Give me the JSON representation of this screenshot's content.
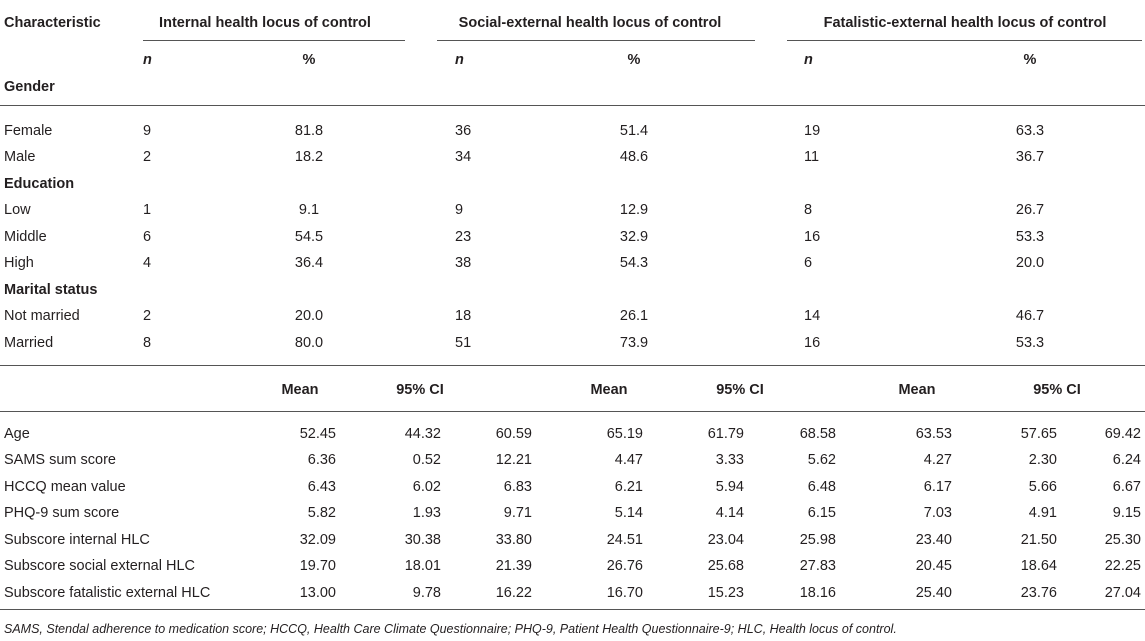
{
  "header": {
    "characteristic": "Characteristic",
    "groups": [
      "Internal health locus of control",
      "Social-external health locus of control",
      "Fatalistic-external health locus of control"
    ],
    "n_label": "n",
    "pct_label": "%",
    "mean_label": "Mean",
    "ci_label": "95% CI"
  },
  "categorical": [
    {
      "type": "section",
      "label": "Gender"
    },
    {
      "type": "row",
      "label": "Female",
      "values": [
        "9",
        "81.8",
        "36",
        "51.4",
        "19",
        "63.3"
      ]
    },
    {
      "type": "row",
      "label": "Male",
      "values": [
        "2",
        "18.2",
        "34",
        "48.6",
        "11",
        "36.7"
      ]
    },
    {
      "type": "section",
      "label": "Education"
    },
    {
      "type": "row",
      "label": "Low",
      "values": [
        "1",
        "9.1",
        "9",
        "12.9",
        "8",
        "26.7"
      ]
    },
    {
      "type": "row",
      "label": "Middle",
      "values": [
        "6",
        "54.5",
        "23",
        "32.9",
        "16",
        "53.3"
      ]
    },
    {
      "type": "row",
      "label": "High",
      "values": [
        "4",
        "36.4",
        "38",
        "54.3",
        "6",
        "20.0"
      ]
    },
    {
      "type": "section",
      "label": "Marital status"
    },
    {
      "type": "row",
      "label": "Not married",
      "values": [
        "2",
        "20.0",
        "18",
        "26.1",
        "14",
        "46.7"
      ]
    },
    {
      "type": "row",
      "label": "Married",
      "values": [
        "8",
        "80.0",
        "51",
        "73.9",
        "16",
        "53.3"
      ]
    }
  ],
  "continuous": [
    {
      "label": "Age",
      "values": [
        "52.45",
        "44.32",
        "60.59",
        "65.19",
        "61.79",
        "68.58",
        "63.53",
        "57.65",
        "69.42"
      ]
    },
    {
      "label": "SAMS sum score",
      "values": [
        "6.36",
        "0.52",
        "12.21",
        "4.47",
        "3.33",
        "5.62",
        "4.27",
        "2.30",
        "6.24"
      ]
    },
    {
      "label": "HCCQ mean value",
      "values": [
        "6.43",
        "6.02",
        "6.83",
        "6.21",
        "5.94",
        "6.48",
        "6.17",
        "5.66",
        "6.67"
      ]
    },
    {
      "label": "PHQ-9 sum score",
      "values": [
        "5.82",
        "1.93",
        "9.71",
        "5.14",
        "4.14",
        "6.15",
        "7.03",
        "4.91",
        "9.15"
      ]
    },
    {
      "label": "Subscore internal HLC",
      "values": [
        "32.09",
        "30.38",
        "33.80",
        "24.51",
        "23.04",
        "25.98",
        "23.40",
        "21.50",
        "25.30"
      ]
    },
    {
      "label": "Subscore social external HLC",
      "values": [
        "19.70",
        "18.01",
        "21.39",
        "26.76",
        "25.68",
        "27.83",
        "20.45",
        "18.64",
        "22.25"
      ]
    },
    {
      "label": "Subscore fatalistic external HLC",
      "values": [
        "13.00",
        "9.78",
        "16.22",
        "16.70",
        "15.23",
        "18.16",
        "25.40",
        "23.76",
        "27.04"
      ]
    }
  ],
  "footnote": "SAMS, Stendal adherence to medication score; HCCQ, Health Care Climate Questionnaire; PHQ-9, Patient Health Questionnaire-9; HLC, Health locus of control."
}
